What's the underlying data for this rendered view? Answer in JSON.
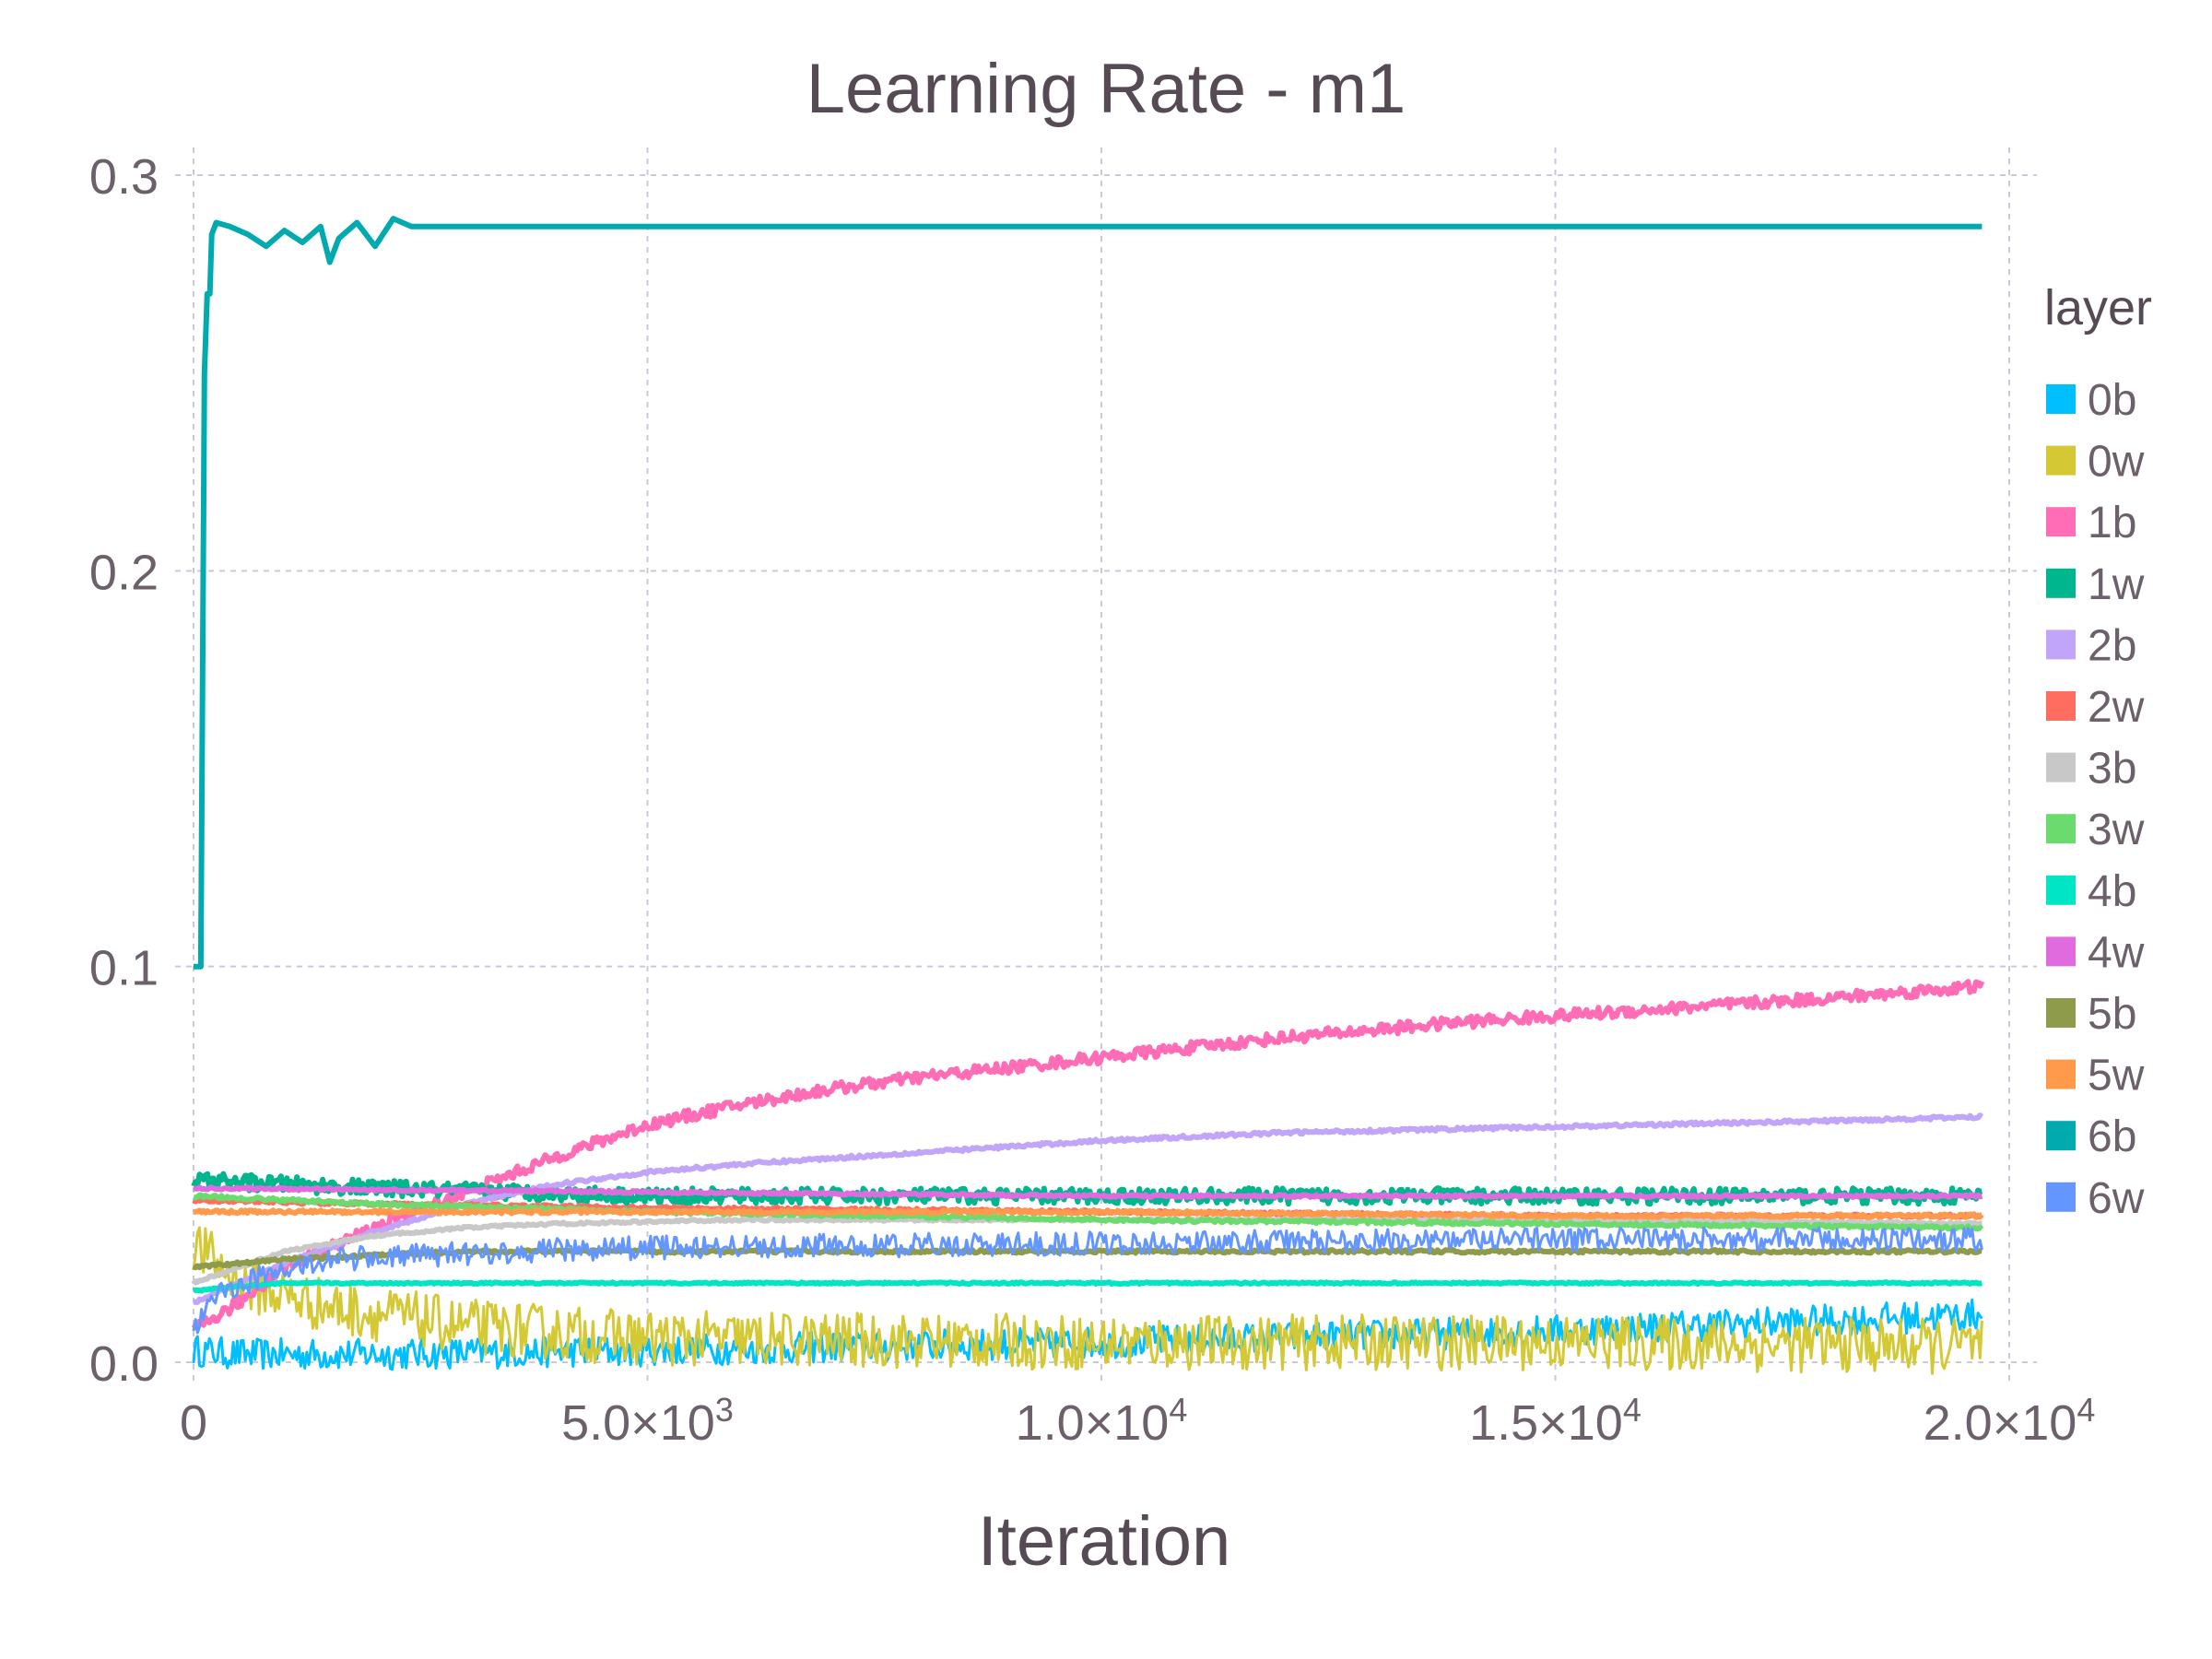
{
  "chart_data": {
    "type": "line",
    "title": "Learning Rate - m1",
    "xlabel": "Iteration",
    "ylabel": "",
    "xlim": [
      0,
      20000
    ],
    "ylim": [
      0.0,
      0.3
    ],
    "grid": true,
    "legend_position": "right",
    "legend_title": "layer",
    "x_ticks": [
      {
        "value": 0,
        "base": "0",
        "exp": ""
      },
      {
        "value": 5000,
        "base": "5.0×10",
        "exp": "3"
      },
      {
        "value": 10000,
        "base": "1.0×10",
        "exp": "4"
      },
      {
        "value": 15000,
        "base": "1.5×10",
        "exp": "4"
      },
      {
        "value": 20000,
        "base": "2.0×10",
        "exp": "4"
      }
    ],
    "y_ticks": [
      {
        "value": 0.0,
        "label": "0.0"
      },
      {
        "value": 0.1,
        "label": "0.1"
      },
      {
        "value": 0.2,
        "label": "0.2"
      },
      {
        "value": 0.3,
        "label": "0.3"
      }
    ],
    "series": [
      {
        "name": "0b",
        "color": "#00bfff",
        "noise": 0.004,
        "x": [
          0,
          500,
          2000,
          5000,
          10000,
          15000,
          19700
        ],
        "y": [
          0.003,
          0.002,
          0.002,
          0.003,
          0.005,
          0.008,
          0.012
        ]
      },
      {
        "name": "0w",
        "color": "#d4c935",
        "noise": 0.007,
        "x": [
          0,
          500,
          1500,
          3000,
          5000,
          10000,
          15000,
          19700
        ],
        "y": [
          0.03,
          0.02,
          0.014,
          0.009,
          0.006,
          0.005,
          0.005,
          0.004
        ]
      },
      {
        "name": "1b",
        "color": "#ff6db6",
        "noise": 0.0015,
        "x": [
          0,
          500,
          1000,
          2000,
          3000,
          4000,
          5000,
          6000,
          7000,
          8000,
          10000,
          12000,
          14000,
          16000,
          18000,
          19700
        ],
        "y": [
          0.008,
          0.015,
          0.024,
          0.034,
          0.043,
          0.052,
          0.06,
          0.065,
          0.069,
          0.072,
          0.077,
          0.082,
          0.086,
          0.089,
          0.092,
          0.095
        ]
      },
      {
        "name": "1w",
        "color": "#00b78d",
        "noise": 0.002,
        "x": [
          0,
          2000,
          5000,
          10000,
          15000,
          19700
        ],
        "y": [
          0.046,
          0.044,
          0.042,
          0.042,
          0.042,
          0.042
        ]
      },
      {
        "name": "2b",
        "color": "#c0a5f9",
        "noise": 0.0004,
        "x": [
          0,
          1000,
          2000,
          3000,
          4000,
          5000,
          6000,
          8000,
          10000,
          12000,
          14000,
          16000,
          18000,
          19700
        ],
        "y": [
          0.015,
          0.025,
          0.033,
          0.04,
          0.045,
          0.048,
          0.05,
          0.053,
          0.056,
          0.058,
          0.059,
          0.06,
          0.061,
          0.062
        ]
      },
      {
        "name": "2w",
        "color": "#ff6d61",
        "noise": 0.0004,
        "x": [
          0,
          2000,
          5000,
          10000,
          15000,
          19700
        ],
        "y": [
          0.041,
          0.04,
          0.039,
          0.038,
          0.037,
          0.037
        ]
      },
      {
        "name": "3b",
        "color": "#c8c8c8",
        "noise": 0.0003,
        "x": [
          0,
          1000,
          2000,
          3000,
          4000,
          6000,
          10000,
          15000,
          19700
        ],
        "y": [
          0.02,
          0.028,
          0.032,
          0.034,
          0.035,
          0.036,
          0.036,
          0.036,
          0.035
        ]
      },
      {
        "name": "3w",
        "color": "#6bdb6e",
        "noise": 0.0004,
        "x": [
          0,
          2000,
          5000,
          10000,
          15000,
          19700
        ],
        "y": [
          0.042,
          0.04,
          0.038,
          0.036,
          0.035,
          0.034
        ]
      },
      {
        "name": "4b",
        "color": "#00e6c4",
        "noise": 0.0002,
        "x": [
          0,
          400,
          1000,
          5000,
          10000,
          15000,
          19700
        ],
        "y": [
          0.018,
          0.019,
          0.02,
          0.02,
          0.02,
          0.02,
          0.02
        ]
      },
      {
        "name": "4w",
        "color": "#df6bde",
        "noise": 0.0003,
        "x": [
          0,
          5000,
          10000,
          15000,
          19700
        ],
        "y": [
          0.044,
          0.043,
          0.042,
          0.042,
          0.042
        ]
      },
      {
        "name": "5b",
        "color": "#8e9b4a",
        "noise": 0.0004,
        "x": [
          0,
          1000,
          2000,
          3000,
          5000,
          10000,
          15000,
          19700
        ],
        "y": [
          0.024,
          0.026,
          0.027,
          0.028,
          0.028,
          0.028,
          0.028,
          0.028
        ]
      },
      {
        "name": "5w",
        "color": "#ff9a4d",
        "noise": 0.0004,
        "x": [
          0,
          2000,
          5000,
          10000,
          15000,
          19700
        ],
        "y": [
          0.038,
          0.038,
          0.038,
          0.038,
          0.037,
          0.037
        ]
      },
      {
        "name": "6b",
        "color": "#00aaae",
        "noise": 0.0,
        "x": [
          0,
          80,
          120,
          150,
          180,
          200,
          250,
          400,
          600,
          800,
          1000,
          1200,
          1400,
          1500,
          1600,
          1800,
          2000,
          2200,
          2400,
          3000,
          5000,
          10000,
          15000,
          19700
        ],
        "y": [
          0.1,
          0.1,
          0.25,
          0.27,
          0.27,
          0.285,
          0.288,
          0.287,
          0.285,
          0.282,
          0.286,
          0.283,
          0.287,
          0.278,
          0.284,
          0.288,
          0.282,
          0.289,
          0.287,
          0.287,
          0.287,
          0.287,
          0.287,
          0.287
        ]
      },
      {
        "name": "6w",
        "color": "#6496ff",
        "noise": 0.003,
        "x": [
          0,
          300,
          800,
          1500,
          2500,
          3500,
          5000,
          10000,
          15000,
          19700
        ],
        "y": [
          0.008,
          0.018,
          0.022,
          0.026,
          0.027,
          0.028,
          0.029,
          0.03,
          0.031,
          0.031
        ]
      }
    ]
  }
}
